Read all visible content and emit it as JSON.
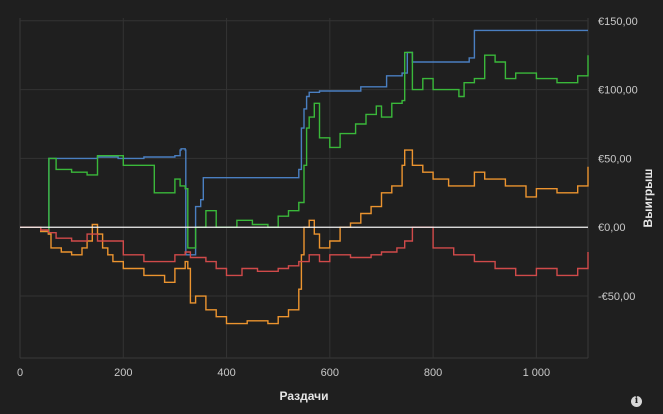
{
  "chart_data": {
    "type": "line",
    "xlabel": "Раздачи",
    "ylabel": "Выигрыш",
    "xlim": [
      0,
      1100
    ],
    "ylim": [
      -95,
      152
    ],
    "x_ticks": [
      0,
      200,
      400,
      600,
      800,
      1000
    ],
    "x_tick_labels": [
      "0",
      "200",
      "400",
      "600",
      "800",
      "1 000"
    ],
    "y_ticks": [
      -50,
      0,
      50,
      100,
      150
    ],
    "y_tick_labels": [
      "-€50,00",
      "€0,00",
      "€50,00",
      "€100,00",
      "€150,00"
    ],
    "grid": true,
    "zero_line": true,
    "series": [
      {
        "color": "#4a7fc1",
        "x": [
          0,
          40,
          55,
          56,
          150,
          190,
          240,
          300,
          310,
          312,
          320,
          321,
          340,
          350,
          355,
          500,
          540,
          545,
          550,
          555,
          560,
          580,
          650,
          660,
          700,
          710,
          740,
          750,
          760,
          850,
          870,
          880,
          1100
        ],
        "y": [
          0,
          -3,
          -4,
          50,
          51,
          50,
          51,
          52,
          56,
          57,
          56,
          -20,
          15,
          20,
          36,
          36,
          42,
          72,
          86,
          95,
          98,
          99,
          99,
          102,
          102,
          110,
          112,
          127,
          120,
          120,
          123,
          143,
          143
        ]
      },
      {
        "color": "#3ab83a",
        "x": [
          0,
          40,
          55,
          56,
          70,
          100,
          130,
          150,
          200,
          260,
          300,
          310,
          320,
          325,
          340,
          360,
          380,
          420,
          450,
          480,
          500,
          520,
          540,
          550,
          555,
          560,
          570,
          580,
          600,
          620,
          650,
          670,
          690,
          700,
          720,
          740,
          745,
          760,
          780,
          800,
          840,
          850,
          860,
          880,
          900,
          920,
          940,
          960,
          1000,
          1040,
          1080,
          1100
        ],
        "y": [
          0,
          -3,
          -5,
          50,
          42,
          40,
          38,
          52,
          45,
          25,
          35,
          30,
          28,
          -15,
          0,
          12,
          0,
          5,
          2,
          0,
          8,
          12,
          18,
          45,
          72,
          80,
          90,
          65,
          58,
          68,
          75,
          82,
          88,
          80,
          90,
          92,
          127,
          100,
          108,
          100,
          100,
          95,
          105,
          108,
          125,
          120,
          108,
          112,
          108,
          105,
          110,
          125
        ]
      },
      {
        "color": "#ec942f",
        "x": [
          0,
          40,
          55,
          60,
          80,
          100,
          120,
          130,
          140,
          150,
          160,
          170,
          180,
          200,
          240,
          280,
          300,
          320,
          325,
          330,
          340,
          360,
          380,
          400,
          440,
          480,
          500,
          520,
          540,
          545,
          550,
          560,
          570,
          580,
          600,
          620,
          640,
          660,
          680,
          700,
          720,
          740,
          745,
          760,
          780,
          800,
          830,
          860,
          880,
          900,
          940,
          980,
          1000,
          1040,
          1080,
          1100
        ],
        "y": [
          0,
          -3,
          -5,
          -15,
          -18,
          -20,
          -15,
          -10,
          2,
          -5,
          -15,
          -20,
          -25,
          -30,
          -35,
          -40,
          -30,
          -25,
          -30,
          -55,
          -50,
          -60,
          -65,
          -70,
          -68,
          -70,
          -65,
          -60,
          -45,
          -20,
          0,
          5,
          -5,
          -15,
          -10,
          0,
          3,
          10,
          15,
          25,
          30,
          45,
          56,
          45,
          40,
          35,
          30,
          30,
          40,
          35,
          30,
          22,
          28,
          25,
          30,
          44
        ]
      },
      {
        "color": "#d04a4a",
        "x": [
          0,
          40,
          55,
          70,
          100,
          130,
          150,
          200,
          240,
          280,
          300,
          320,
          330,
          360,
          380,
          400,
          430,
          460,
          500,
          520,
          540,
          560,
          580,
          600,
          640,
          680,
          700,
          730,
          745,
          760,
          800,
          840,
          880,
          920,
          960,
          1000,
          1040,
          1080,
          1100
        ],
        "y": [
          0,
          -2,
          -4,
          -8,
          -10,
          -5,
          -10,
          -20,
          -25,
          -25,
          -20,
          -18,
          -22,
          -25,
          -30,
          -35,
          -30,
          -32,
          -30,
          -28,
          -25,
          -20,
          -25,
          -20,
          -22,
          -20,
          -18,
          -15,
          -10,
          0,
          -15,
          -20,
          -25,
          -30,
          -35,
          -30,
          -35,
          -30,
          -18
        ]
      }
    ]
  }
}
